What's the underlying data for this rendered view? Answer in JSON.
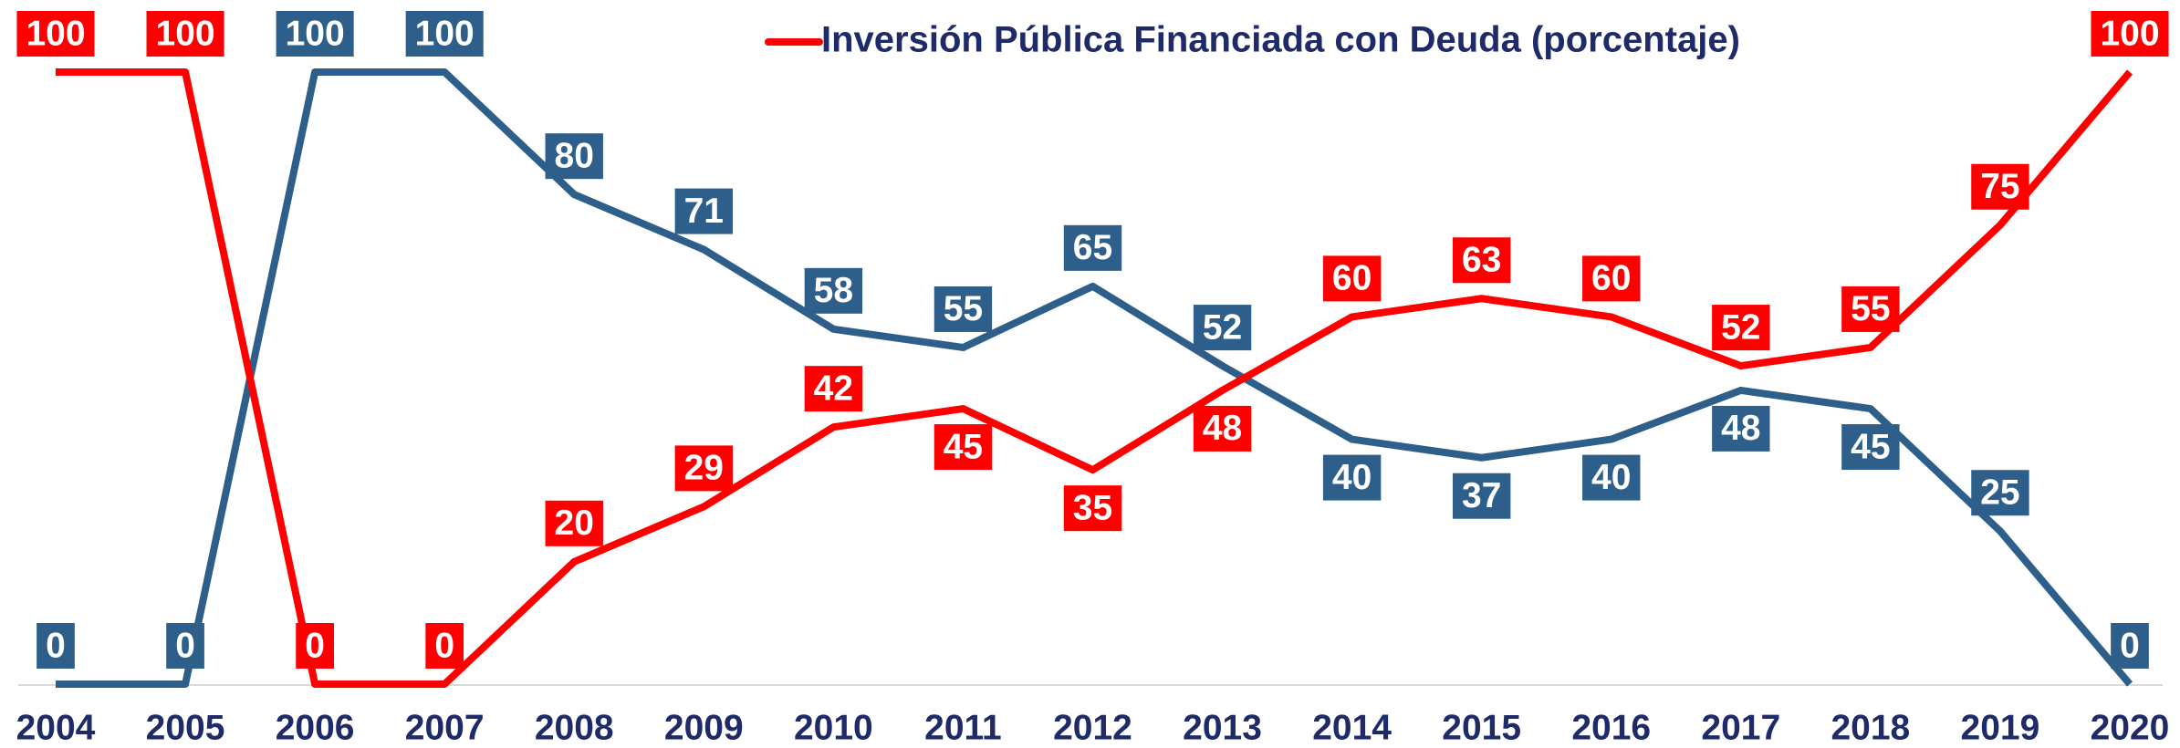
{
  "chart_data": {
    "type": "line",
    "categories": [
      "2004",
      "2005",
      "2006",
      "2007",
      "2008",
      "2009",
      "2010",
      "2011",
      "2012",
      "2013",
      "2014",
      "2015",
      "2016",
      "2017",
      "2018",
      "2019",
      "2020"
    ],
    "series": [
      {
        "color": "#2e5f8a",
        "values": [
          0,
          0,
          100,
          100,
          80,
          71,
          58,
          55,
          65,
          52,
          40,
          37,
          40,
          48,
          45,
          25,
          0
        ]
      },
      {
        "name": "Inversión Pública Financiada con Deuda (porcentaje)",
        "color": "#ff0000",
        "values": [
          100,
          100,
          0,
          0,
          20,
          29,
          42,
          45,
          35,
          48,
          60,
          63,
          60,
          52,
          55,
          75,
          100
        ]
      }
    ],
    "ylim": [
      0,
      100
    ]
  }
}
